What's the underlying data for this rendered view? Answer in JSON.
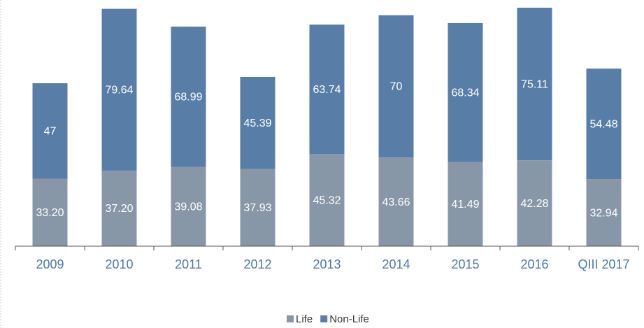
{
  "chart_data": {
    "type": "stacked_bar",
    "categories": [
      "2009",
      "2010",
      "2011",
      "2012",
      "2013",
      "2014",
      "2015",
      "2016",
      "QIII 2017"
    ],
    "series": [
      {
        "name": "Life",
        "color": "#8797a8",
        "values": [
          33.2,
          37.2,
          39.08,
          37.93,
          45.32,
          43.66,
          41.49,
          42.28,
          32.94
        ],
        "value_labels": [
          "33.20",
          "37.20",
          "39.08",
          "37.93",
          "45.32",
          "43.66",
          "41.49",
          "42.28",
          "32.94"
        ]
      },
      {
        "name": "Non-Life",
        "color": "#587ea8",
        "values": [
          47,
          79.64,
          68.99,
          45.39,
          63.74,
          70,
          68.34,
          75.11,
          54.48
        ]
      }
    ]
  }
}
